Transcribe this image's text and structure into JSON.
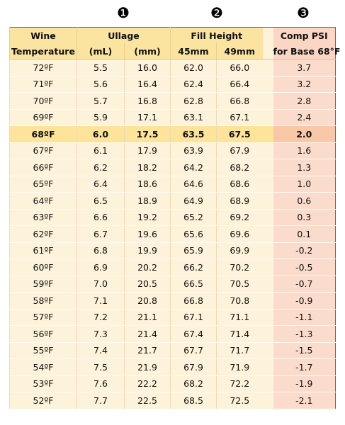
{
  "markers": [
    "❶",
    "❷",
    "❸"
  ],
  "table": {
    "header_top": [
      "Wine",
      "Ullage",
      "Fill Height",
      "Comp PSI"
    ],
    "header_bottom": [
      "Temperature",
      "(mL)",
      "(mm)",
      "45mm",
      "49mm",
      "for Base 68°F"
    ],
    "highlighted_row": 4,
    "rows": [
      [
        "72ºF",
        "5.5",
        "16.0",
        "62.0",
        "66.0",
        "3.7"
      ],
      [
        "71ºF",
        "5.6",
        "16.4",
        "62.4",
        "66.4",
        "3.2"
      ],
      [
        "70ºF",
        "5.7",
        "16.8",
        "62.8",
        "66.8",
        "2.8"
      ],
      [
        "69ºF",
        "5.9",
        "17.1",
        "63.1",
        "67.1",
        "2.4"
      ],
      [
        "68ºF",
        "6.0",
        "17.5",
        "63.5",
        "67.5",
        "2.0"
      ],
      [
        "67ºF",
        "6.1",
        "17.9",
        "63.9",
        "67.9",
        "1.6"
      ],
      [
        "66ºF",
        "6.2",
        "18.2",
        "64.2",
        "68.2",
        "1.3"
      ],
      [
        "65ºF",
        "6.4",
        "18.6",
        "64.6",
        "68.6",
        "1.0"
      ],
      [
        "64ºF",
        "6.5",
        "18.9",
        "64.9",
        "68.9",
        "0.6"
      ],
      [
        "63ºF",
        "6.6",
        "19.2",
        "65.2",
        "69.2",
        "0.3"
      ],
      [
        "62ºF",
        "6.7",
        "19.6",
        "65.6",
        "69.6",
        "0.1"
      ],
      [
        "61ºF",
        "6.8",
        "19.9",
        "65.9",
        "69.9",
        "-0.2"
      ],
      [
        "60ºF",
        "6.9",
        "20.2",
        "66.2",
        "70.2",
        "-0.5"
      ],
      [
        "59ºF",
        "7.0",
        "20.5",
        "66.5",
        "70.5",
        "-0.7"
      ],
      [
        "58ºF",
        "7.1",
        "20.8",
        "66.8",
        "70.8",
        "-0.9"
      ],
      [
        "57ºF",
        "7.2",
        "21.1",
        "67.1",
        "71.1",
        "-1.1"
      ],
      [
        "56ºF",
        "7.3",
        "21.4",
        "67.4",
        "71.4",
        "-1.3"
      ],
      [
        "55ºF",
        "7.4",
        "21.7",
        "67.7",
        "71.7",
        "-1.5"
      ],
      [
        "54ºF",
        "7.5",
        "21.9",
        "67.9",
        "71.9",
        "-1.7"
      ],
      [
        "53ºF",
        "7.6",
        "22.2",
        "68.2",
        "72.2",
        "-1.9"
      ],
      [
        "52ºF",
        "7.7",
        "22.5",
        "68.5",
        "72.5",
        "-2.1"
      ]
    ]
  }
}
